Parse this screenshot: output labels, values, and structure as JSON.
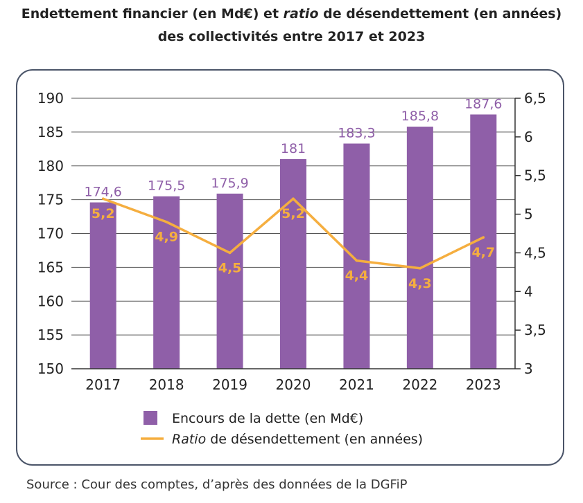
{
  "title_line1_a": "Endettement financier (en Md€) et ",
  "title_line1_italic": "ratio",
  "title_line1_b": " de désendettement (en années)",
  "title_line2": "des collectivités entre 2017 et 2023",
  "source": "Source : Cour des comptes, d’après des données de la DGFiP",
  "colors": {
    "bar": "#8f5fa8",
    "bar_label": "#8f5fa8",
    "line": "#f5ae3f",
    "axis": "#333333",
    "grid": "#555555"
  },
  "chart_data": {
    "type": "bar",
    "categories": [
      "2017",
      "2018",
      "2019",
      "2020",
      "2021",
      "2022",
      "2023"
    ],
    "series": [
      {
        "name": "Encours de la dette (en Md€)",
        "type": "bar",
        "axis": "left",
        "values": [
          174.6,
          175.5,
          175.9,
          181,
          183.3,
          185.8,
          187.6
        ],
        "labels": [
          "174,6",
          "175,5",
          "175,9",
          "181",
          "183,3",
          "185,8",
          "187,6"
        ]
      },
      {
        "name_italic": "Ratio",
        "name_rest": " de désendettement (en années)",
        "type": "line",
        "axis": "right",
        "values": [
          5.2,
          4.9,
          4.5,
          5.2,
          4.4,
          4.3,
          4.7
        ],
        "labels": [
          "5,2",
          "4,9",
          "4,5",
          "5,2",
          "4,4",
          "4,3",
          "4,7"
        ]
      }
    ],
    "y_left": {
      "range": [
        150,
        190
      ],
      "ticks": [
        "150",
        "155",
        "160",
        "165",
        "170",
        "175",
        "180",
        "185",
        "190"
      ]
    },
    "y_right": {
      "range": [
        3,
        6.5
      ],
      "ticks": [
        "3",
        "3,5",
        "4",
        "4,5",
        "5",
        "5,5",
        "6",
        "6,5"
      ]
    },
    "grid": true,
    "legend_position": "bottom"
  }
}
